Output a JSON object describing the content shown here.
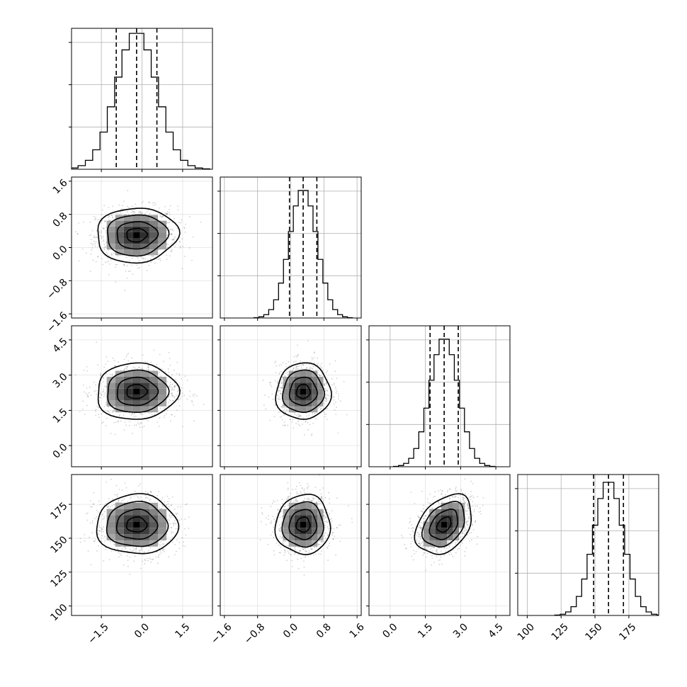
{
  "chart_data": {
    "type": "corner",
    "title": "",
    "parameters": [
      {
        "range": [
          -2.6,
          2.6
        ],
        "ticks": [
          -1.5,
          0.0,
          1.5
        ],
        "tick_labels": [
          "−1.5",
          "0.0",
          "1.5"
        ],
        "quantiles": [
          -0.95,
          -0.2,
          0.55
        ],
        "mean": -0.2,
        "std": 0.75
      },
      {
        "range": [
          -1.7,
          1.7
        ],
        "ticks": [
          -1.6,
          -0.8,
          0.0,
          0.8,
          1.6
        ],
        "tick_labels": [
          "−1.6",
          "−0.8",
          "0.0",
          "0.8",
          "1.6"
        ],
        "quantiles": [
          -0.03,
          0.3,
          0.63
        ],
        "mean": 0.3,
        "std": 0.33
      },
      {
        "range": [
          -0.9,
          5.1
        ],
        "ticks": [
          0.0,
          1.5,
          3.0,
          4.5
        ],
        "tick_labels": [
          "0.0",
          "1.5",
          "3.0",
          "4.5"
        ],
        "quantiles": [
          1.7,
          2.3,
          2.9
        ],
        "mean": 2.3,
        "std": 0.6
      },
      {
        "range": [
          93,
          197
        ],
        "ticks": [
          100,
          125,
          150,
          175
        ],
        "tick_labels": [
          "100",
          "125",
          "150",
          "175"
        ],
        "quantiles": [
          149,
          160,
          171
        ],
        "mean": 160,
        "std": 11
      }
    ],
    "hist_bins": 20,
    "hist_peak_counts": [
      0.98,
      0.92,
      0.92,
      0.96
    ],
    "contour_levels_sigma": [
      0.5,
      1.0,
      1.5,
      2.0
    ],
    "correlations": {
      "1-0": 0.05,
      "2-0": 0.03,
      "2-1": 0.03,
      "3-0": 0.0,
      "3-1": 0.02,
      "3-2": 0.35
    },
    "grid": true,
    "legend": "none",
    "xlabel": "",
    "ylabel": ""
  }
}
